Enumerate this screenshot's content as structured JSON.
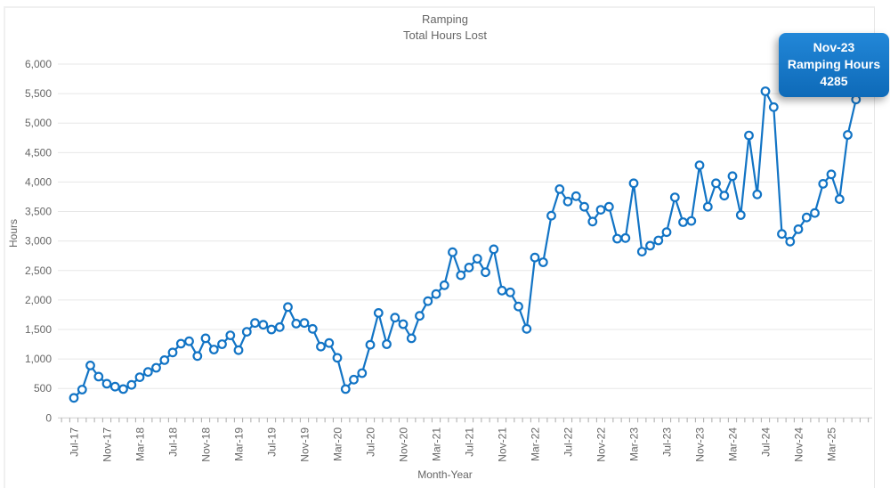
{
  "title": {
    "line1": "Ramping",
    "line2": "Total Hours Lost"
  },
  "tooltip": {
    "month": "Nov-23",
    "series_label": "Ramping Hours",
    "value": "4285"
  },
  "colors": {
    "series_blue": "#1274c5",
    "marker_fill": "#ffffff",
    "grid": "#e7e7e7",
    "axis_line": "#cfcfcf",
    "tick": "#aaaaaa",
    "text": "#666666",
    "tooltip_top": "#2287d8",
    "tooltip_bottom": "#0e6ab8"
  },
  "chart_data": {
    "type": "line",
    "title": "Ramping",
    "subtitle": "Total Hours Lost",
    "xlabel": "Month-Year",
    "ylabel": "Hours",
    "ylim": [
      0,
      6000
    ],
    "y_tick_step": 500,
    "y_tick_labels": [
      "0",
      "500",
      "1,000",
      "1,500",
      "2,000",
      "2,500",
      "3,000",
      "3,500",
      "4,000",
      "4,500",
      "5,000",
      "5,500",
      "6,000"
    ],
    "grid": true,
    "legend_position": "none",
    "x_label_every": 4,
    "categories": [
      "Jul-17",
      "Aug-17",
      "Sep-17",
      "Oct-17",
      "Nov-17",
      "Dec-17",
      "Jan-18",
      "Feb-18",
      "Mar-18",
      "Apr-18",
      "May-18",
      "Jun-18",
      "Jul-18",
      "Aug-18",
      "Sep-18",
      "Oct-18",
      "Nov-18",
      "Dec-18",
      "Jan-19",
      "Feb-19",
      "Mar-19",
      "Apr-19",
      "May-19",
      "Jun-19",
      "Jul-19",
      "Aug-19",
      "Sep-19",
      "Oct-19",
      "Nov-19",
      "Dec-19",
      "Jan-20",
      "Feb-20",
      "Mar-20",
      "Apr-20",
      "May-20",
      "Jun-20",
      "Jul-20",
      "Aug-20",
      "Sep-20",
      "Oct-20",
      "Nov-20",
      "Dec-20",
      "Jan-21",
      "Feb-21",
      "Mar-21",
      "Apr-21",
      "May-21",
      "Jun-21",
      "Jul-21",
      "Aug-21",
      "Sep-21",
      "Oct-21",
      "Nov-21",
      "Dec-21",
      "Jan-22",
      "Feb-22",
      "Mar-22",
      "Apr-22",
      "May-22",
      "Jun-22",
      "Jul-22",
      "Aug-22",
      "Sep-22",
      "Oct-22",
      "Nov-22",
      "Dec-22",
      "Jan-23",
      "Feb-23",
      "Mar-23",
      "Apr-23",
      "May-23",
      "Jun-23",
      "Jul-23",
      "Aug-23",
      "Sep-23",
      "Oct-23",
      "Nov-23",
      "Dec-23",
      "Jan-24",
      "Feb-24",
      "Mar-24",
      "Apr-24",
      "May-24",
      "Jun-24",
      "Jul-24",
      "Aug-24",
      "Sep-24",
      "Oct-24",
      "Nov-24",
      "Dec-24",
      "Jan-25",
      "Feb-25",
      "Mar-25",
      "Apr-25",
      "May-25",
      "Jun-25"
    ],
    "series": [
      {
        "name": "Ramping Hours",
        "values": [
          340,
          480,
          890,
          700,
          580,
          530,
          490,
          560,
          690,
          780,
          850,
          980,
          1110,
          1260,
          1300,
          1050,
          1350,
          1160,
          1250,
          1400,
          1150,
          1460,
          1610,
          1580,
          1500,
          1540,
          1880,
          1600,
          1610,
          1510,
          1210,
          1270,
          1020,
          490,
          650,
          760,
          1240,
          1780,
          1250,
          1700,
          1590,
          1350,
          1730,
          1980,
          2100,
          2250,
          2810,
          2420,
          2550,
          2700,
          2470,
          2860,
          2160,
          2130,
          1890,
          1510,
          2720,
          2640,
          3430,
          3880,
          3670,
          3760,
          3580,
          3330,
          3530,
          3580,
          3040,
          3050,
          3980,
          2820,
          2920,
          3010,
          3150,
          3740,
          3320,
          3340,
          4285,
          3580,
          3980,
          3770,
          4100,
          3440,
          4790,
          3790,
          5540,
          5270,
          3120,
          2990,
          3200,
          3400,
          3475,
          3970,
          4130,
          3710,
          4800,
          5400
        ]
      }
    ]
  }
}
